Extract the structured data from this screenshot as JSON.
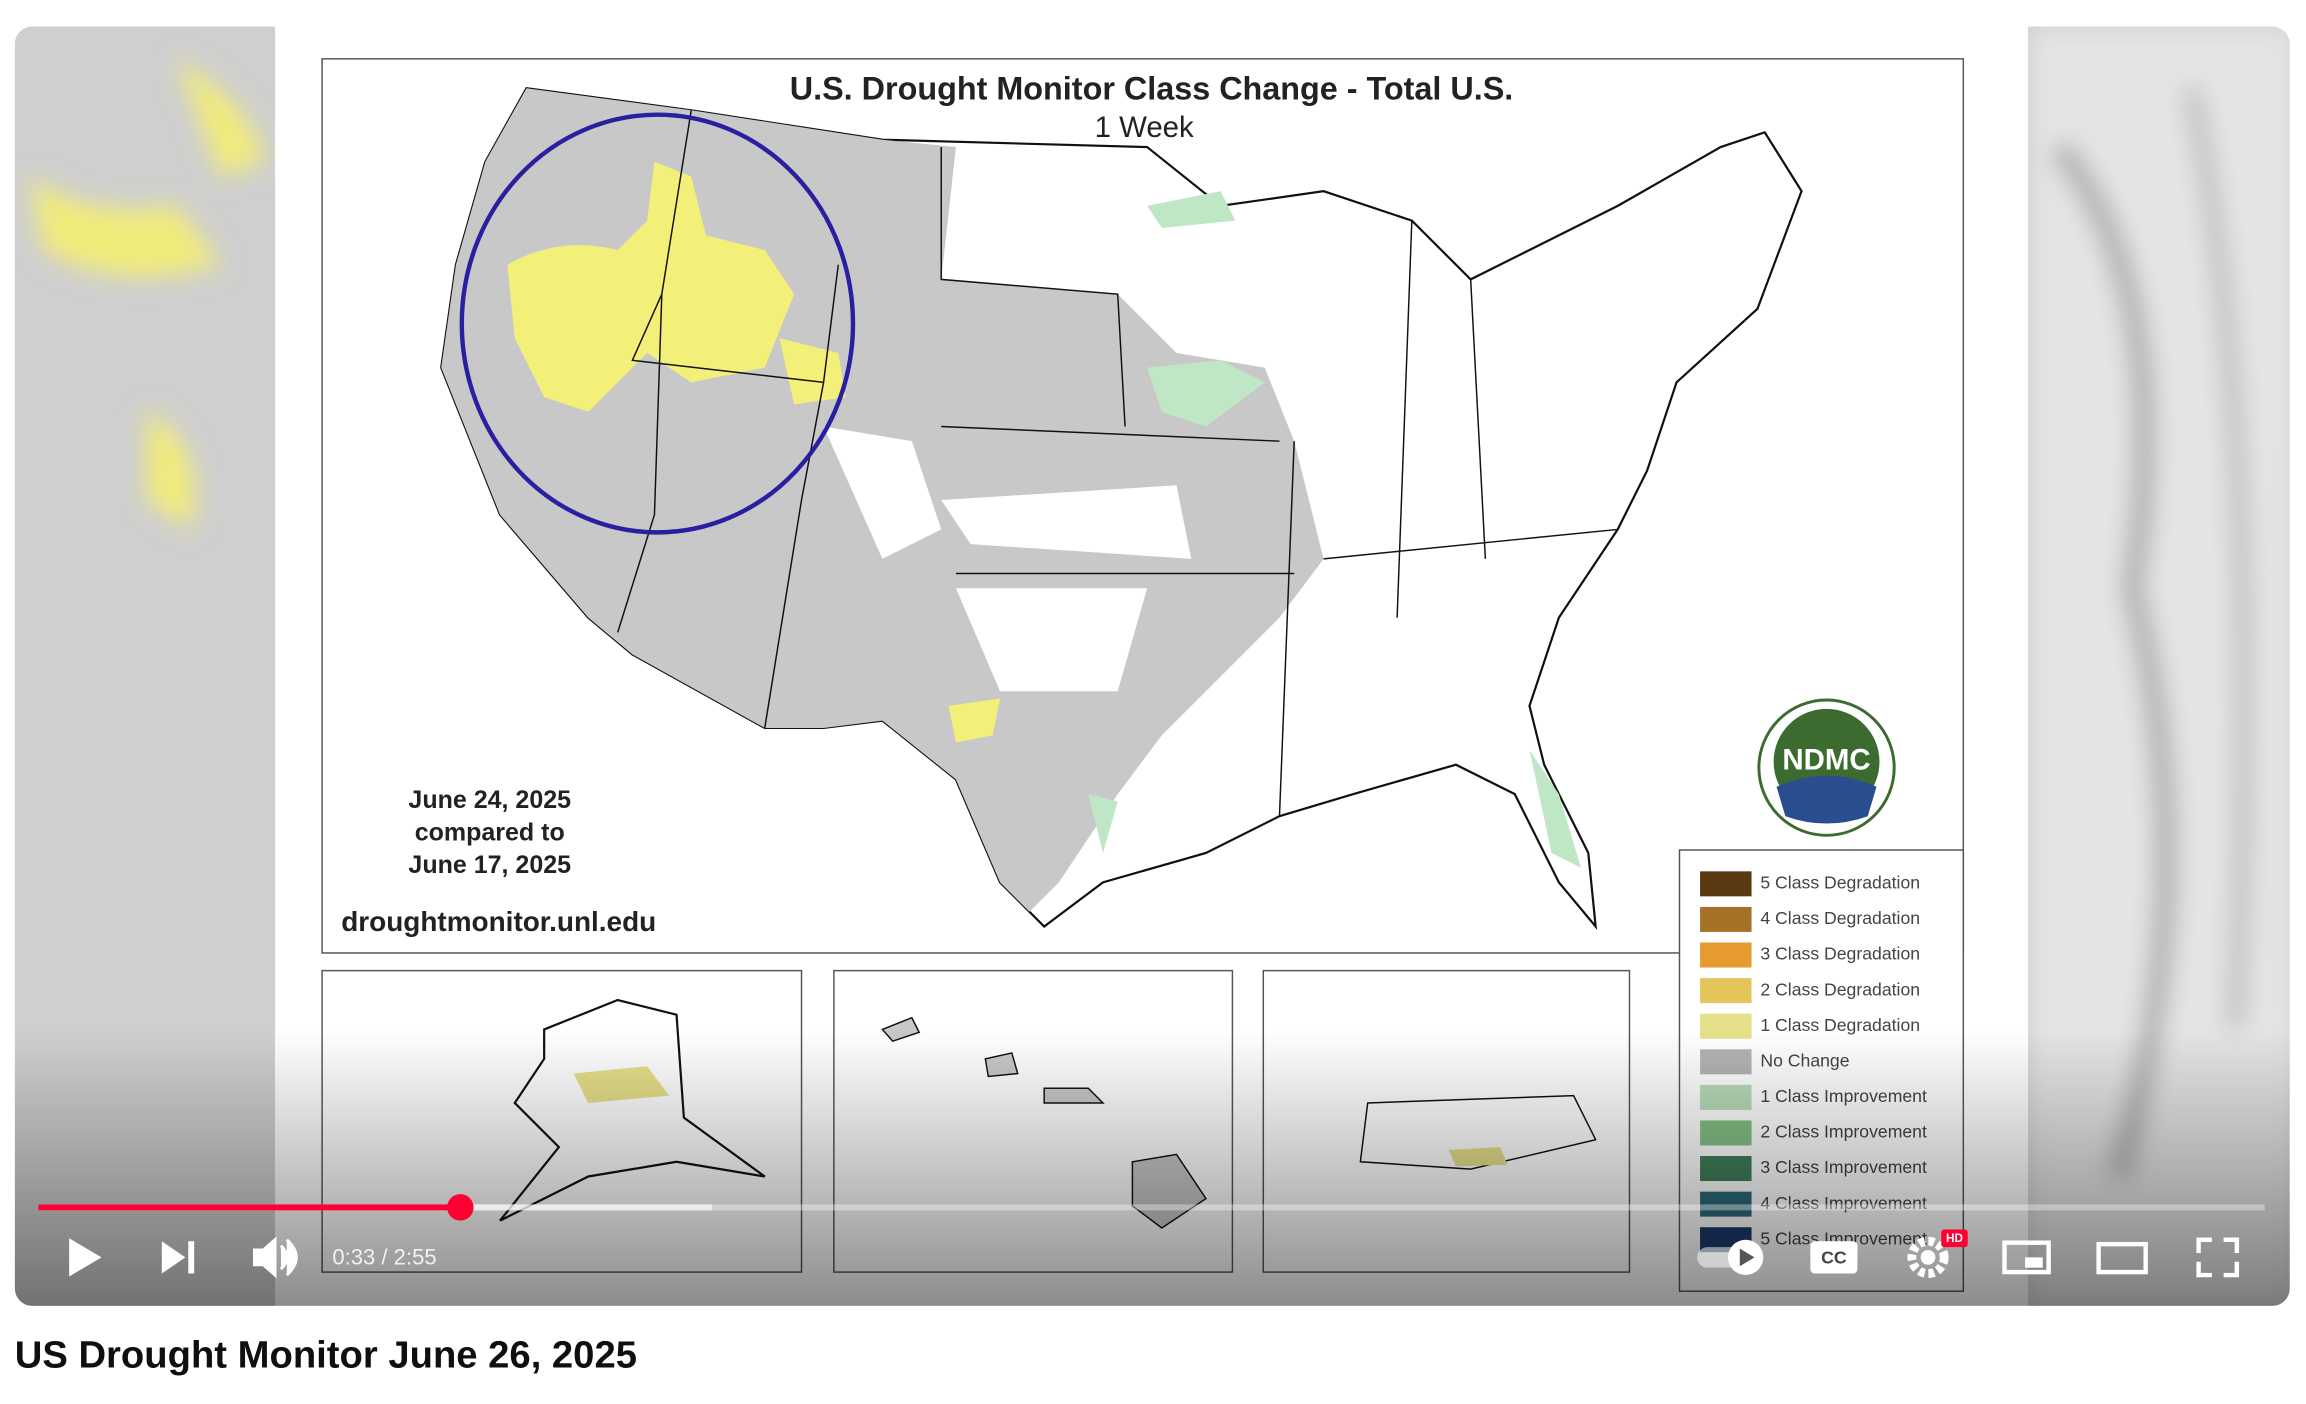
{
  "video": {
    "title": "US Drought Monitor June 26, 2025",
    "time": "0:33 / 2:55",
    "hd_badge": "HD",
    "cc_label": "CC"
  },
  "map": {
    "title": "U.S. Drought Monitor Class Change - Total U.S.",
    "subtitle": "1 Week",
    "date_lines": [
      "June 24, 2025",
      "compared to",
      "June 17, 2025"
    ],
    "url": "droughtmonitor.unl.edu",
    "logo": "NDMC",
    "legend": [
      {
        "label": "5 Class Degradation",
        "color": "#5a3a12"
      },
      {
        "label": "4 Class Degradation",
        "color": "#a57228"
      },
      {
        "label": "3 Class Degradation",
        "color": "#e79a2f"
      },
      {
        "label": "2 Class Degradation",
        "color": "#e3c55a"
      },
      {
        "label": "1 Class Degradation",
        "color": "#e6e08a"
      },
      {
        "label": "No Change",
        "color": "#b4b4b4"
      },
      {
        "label": "1 Class Improvement",
        "color": "#b9dcb9"
      },
      {
        "label": "2 Class Improvement",
        "color": "#86c186"
      },
      {
        "label": "3 Class Improvement",
        "color": "#3f7f5a"
      },
      {
        "label": "4 Class Improvement",
        "color": "#2d6a7a"
      },
      {
        "label": "5 Class Improvement",
        "color": "#1b3a6b"
      }
    ]
  }
}
